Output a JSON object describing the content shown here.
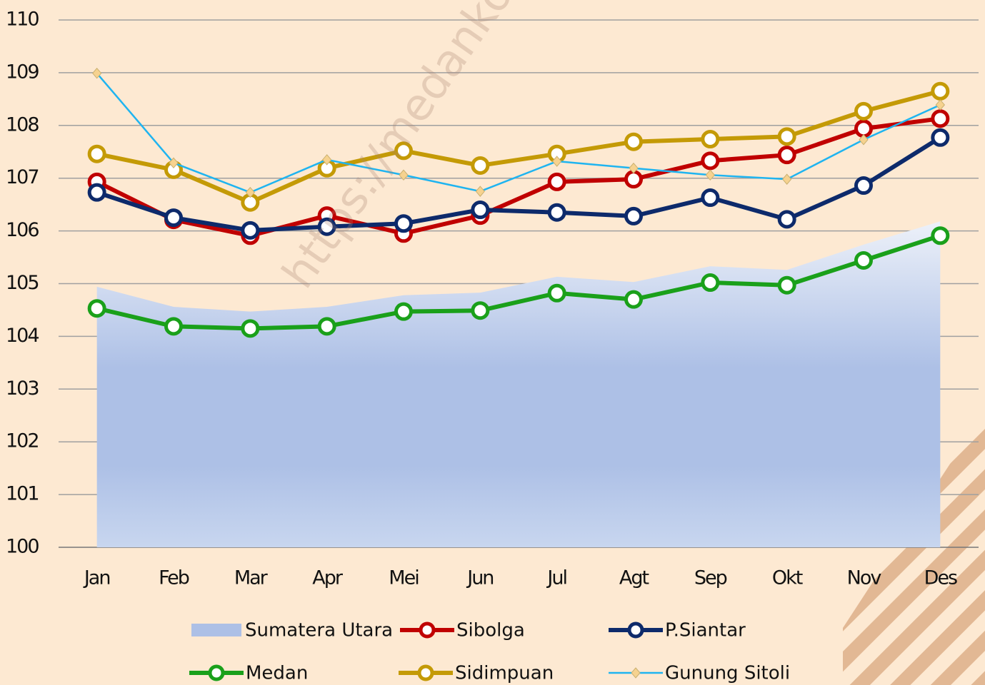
{
  "chart_data": {
    "type": "line",
    "watermark": "https://medanko",
    "categories": [
      "Jan",
      "Feb",
      "Mar",
      "Apr",
      "Mei",
      "Jun",
      "Jul",
      "Agt",
      "Sep",
      "Okt",
      "Nov",
      "Des"
    ],
    "ylim": [
      100,
      110
    ],
    "yticks": [
      100,
      101,
      102,
      103,
      104,
      105,
      106,
      107,
      108,
      109,
      110
    ],
    "grid": true,
    "legend": "bottom",
    "series": [
      {
        "name": "Sumatera Utara",
        "kind": "area",
        "color": "#adc0e6",
        "values": [
          104.94,
          104.56,
          104.47,
          104.56,
          104.78,
          104.83,
          105.13,
          105.03,
          105.33,
          105.26,
          105.74,
          106.18
        ]
      },
      {
        "name": "Sibolga",
        "kind": "line",
        "marker": "circle",
        "color": "#c00000",
        "values": [
          106.93,
          106.21,
          105.91,
          106.29,
          105.95,
          106.29,
          106.93,
          106.98,
          107.33,
          107.44,
          107.94,
          108.13
        ]
      },
      {
        "name": "P.Siantar",
        "kind": "line",
        "marker": "circle",
        "color": "#0d2a6b",
        "values": [
          106.73,
          106.25,
          106.01,
          106.08,
          106.14,
          106.4,
          106.35,
          106.28,
          106.63,
          106.22,
          106.86,
          107.77
        ]
      },
      {
        "name": "Medan",
        "kind": "line",
        "marker": "circle",
        "color": "#1aa01a",
        "values": [
          104.53,
          104.19,
          104.15,
          104.19,
          104.47,
          104.49,
          104.82,
          104.7,
          105.02,
          104.97,
          105.44,
          105.91
        ]
      },
      {
        "name": "Sidimpuan",
        "kind": "line",
        "marker": "circle",
        "color": "#c49a06",
        "values": [
          107.46,
          107.16,
          106.54,
          107.19,
          107.52,
          107.24,
          107.46,
          107.69,
          107.74,
          107.79,
          108.27,
          108.65
        ]
      },
      {
        "name": "Gunung Sitoli",
        "kind": "line",
        "marker": "diamond",
        "color": "#1fb4f0",
        "values": [
          108.99,
          107.29,
          106.73,
          107.35,
          107.06,
          106.75,
          107.32,
          107.19,
          107.06,
          106.98,
          107.73,
          108.39
        ]
      }
    ]
  }
}
